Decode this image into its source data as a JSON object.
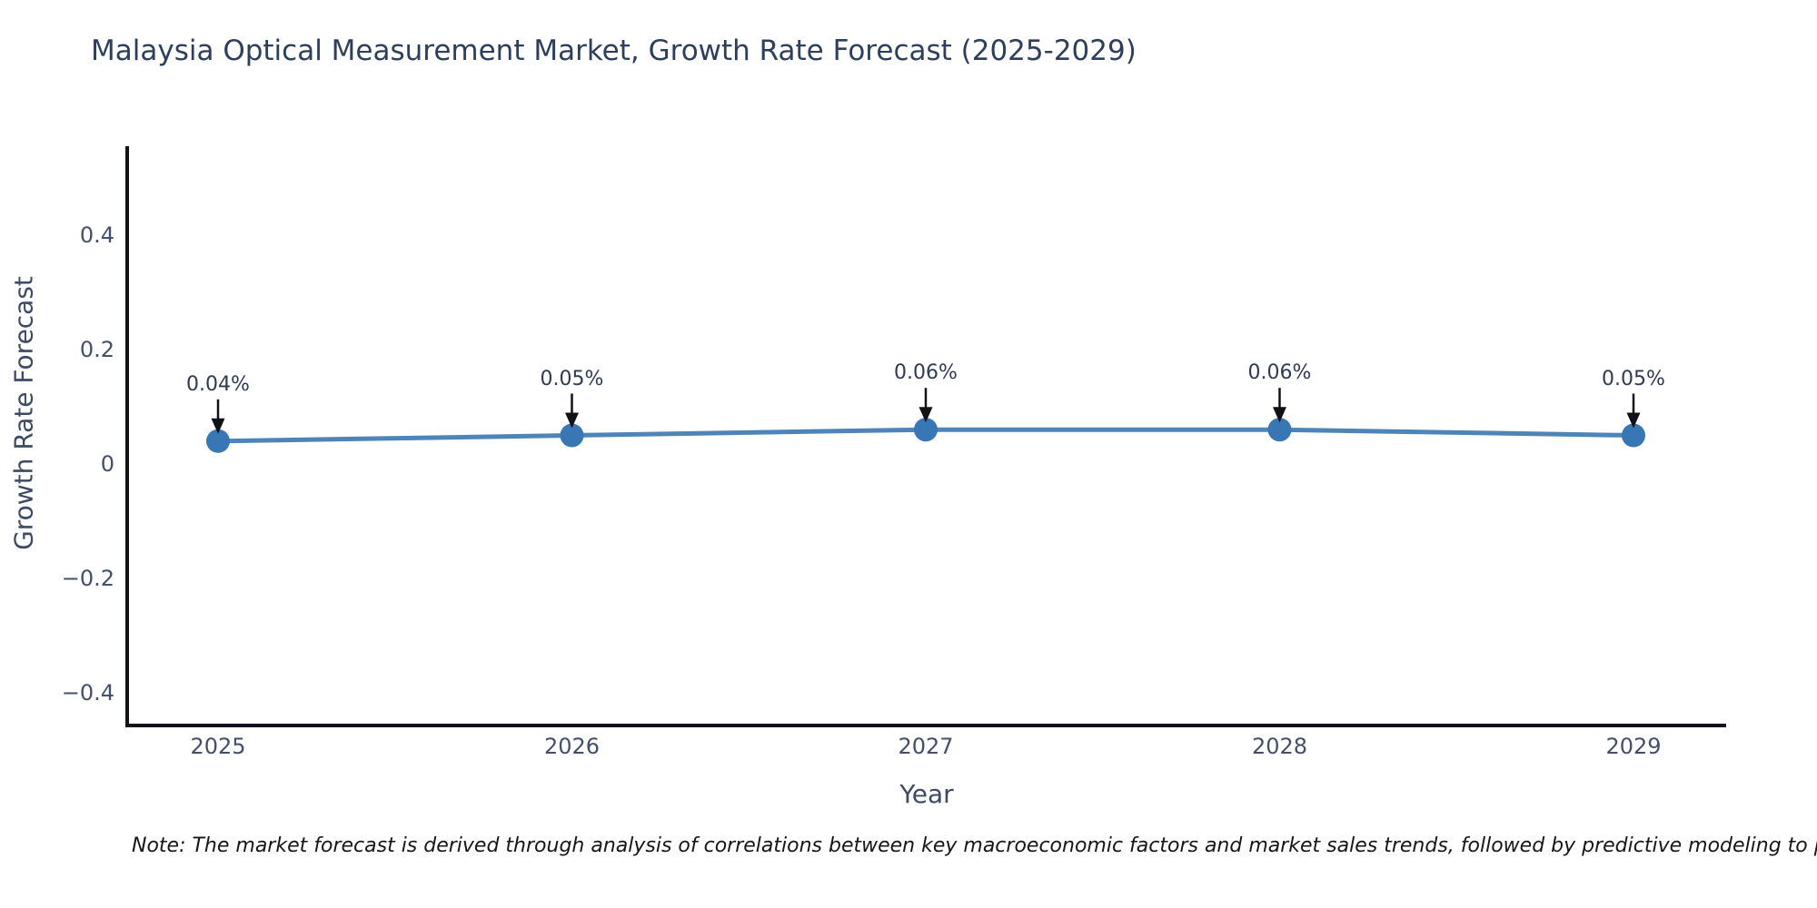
{
  "title": "Malaysia Optical Measurement Market, Growth Rate Forecast (2025-2029)",
  "note": "Note: The market forecast is derived through analysis of correlations between key macroeconomic factors and market sales trends, followed by predictive modeling to project future sales.",
  "chart_data": {
    "type": "line",
    "title": "Malaysia Optical Measurement Market, Growth Rate Forecast (2025-2029)",
    "xlabel": "Year",
    "ylabel": "Growth Rate Forecast",
    "x": [
      2025,
      2026,
      2027,
      2028,
      2029
    ],
    "xtick_labels": [
      "2025",
      "2026",
      "2027",
      "2028",
      "2029"
    ],
    "series": [
      {
        "name": "Growth Rate Forecast",
        "values": [
          0.04,
          0.05,
          0.06,
          0.06,
          0.05
        ]
      }
    ],
    "point_annotations": [
      "0.04%",
      "0.05%",
      "0.06%",
      "0.06%",
      "0.05%"
    ],
    "yticks": [
      0.4,
      0.2,
      0,
      -0.2,
      -0.4
    ],
    "ytick_labels": [
      "0.4",
      "0.2",
      "0",
      "−0.2",
      "−0.4"
    ],
    "ylim": [
      -0.457,
      0.556
    ],
    "grid": false,
    "legend": "none",
    "line_color": "#4e84b8",
    "marker_color": "#3876b4",
    "arrow_color": "#111118",
    "axis_color": "#10121c"
  },
  "colors": {
    "background": "#ffffff",
    "title_text": "#2e3f5c",
    "tick_text": "#44506a",
    "annotation_text": "#2f3b52",
    "note_text": "#15161a"
  }
}
